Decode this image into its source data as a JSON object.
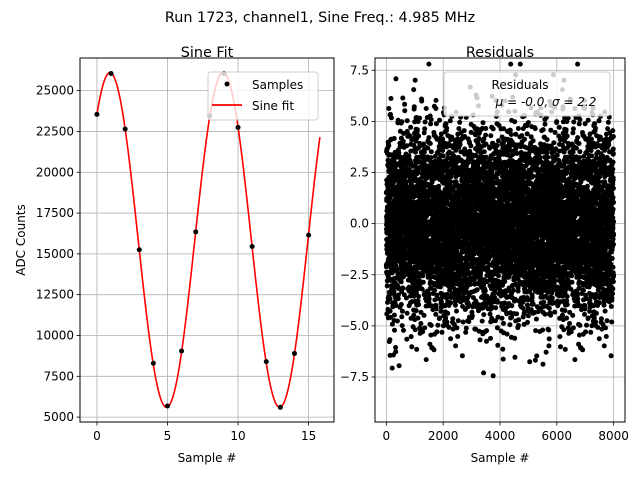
{
  "figure": {
    "suptitle": "Run 1723, channel1, Sine Freq.: 4.985 MHz"
  },
  "chart_data": [
    {
      "type": "scatter",
      "title": "Sine Fit",
      "xlabel": "Sample #",
      "ylabel": "ADC Counts",
      "xlim": [
        -1.2,
        16.8
      ],
      "ylim": [
        4700,
        27000
      ],
      "xticks": [
        0,
        5,
        10,
        15
      ],
      "yticks": [
        5000,
        7500,
        10000,
        12500,
        15000,
        17500,
        20000,
        22500,
        25000
      ],
      "grid": true,
      "legend_position": "top-right",
      "series": [
        {
          "name": "Samples",
          "kind": "scatter",
          "color": "#000000",
          "x": [
            0,
            1,
            2,
            3,
            4,
            5,
            6,
            7,
            8,
            9,
            10,
            11,
            12,
            13,
            14,
            15
          ],
          "y": [
            23550,
            26050,
            22650,
            15250,
            8300,
            5680,
            9050,
            16350,
            23450,
            26050,
            22750,
            15450,
            8400,
            5600,
            8900,
            16150
          ]
        },
        {
          "name": "Sine fit",
          "kind": "line",
          "color": "#ff0000",
          "fit": {
            "amplitude": 10250,
            "offset": 15850,
            "period_samples": 8.02,
            "phase_rad": 0.85,
            "x_range": [
              0,
              15.8
            ]
          }
        }
      ]
    },
    {
      "type": "scatter",
      "title": "Residuals",
      "xlabel": "Sample #",
      "ylabel": "",
      "xlim": [
        -400,
        8400
      ],
      "ylim": [
        -9.7,
        8.1
      ],
      "xticks": [
        0,
        2000,
        4000,
        6000,
        8000
      ],
      "yticks": [
        -7.5,
        -5.0,
        -2.5,
        0.0,
        2.5,
        5.0,
        7.5
      ],
      "grid": true,
      "legend_position": "top-right",
      "series": [
        {
          "name": "Residuals",
          "kind": "scatter",
          "color": "#000000",
          "distribution": {
            "mean": 0.0,
            "std": 2.2,
            "count": 8000,
            "x_range": [
              0,
              7999
            ]
          }
        }
      ],
      "legend_lines": [
        "Residuals",
        "μ = -0.0, σ = 2.2"
      ]
    }
  ]
}
